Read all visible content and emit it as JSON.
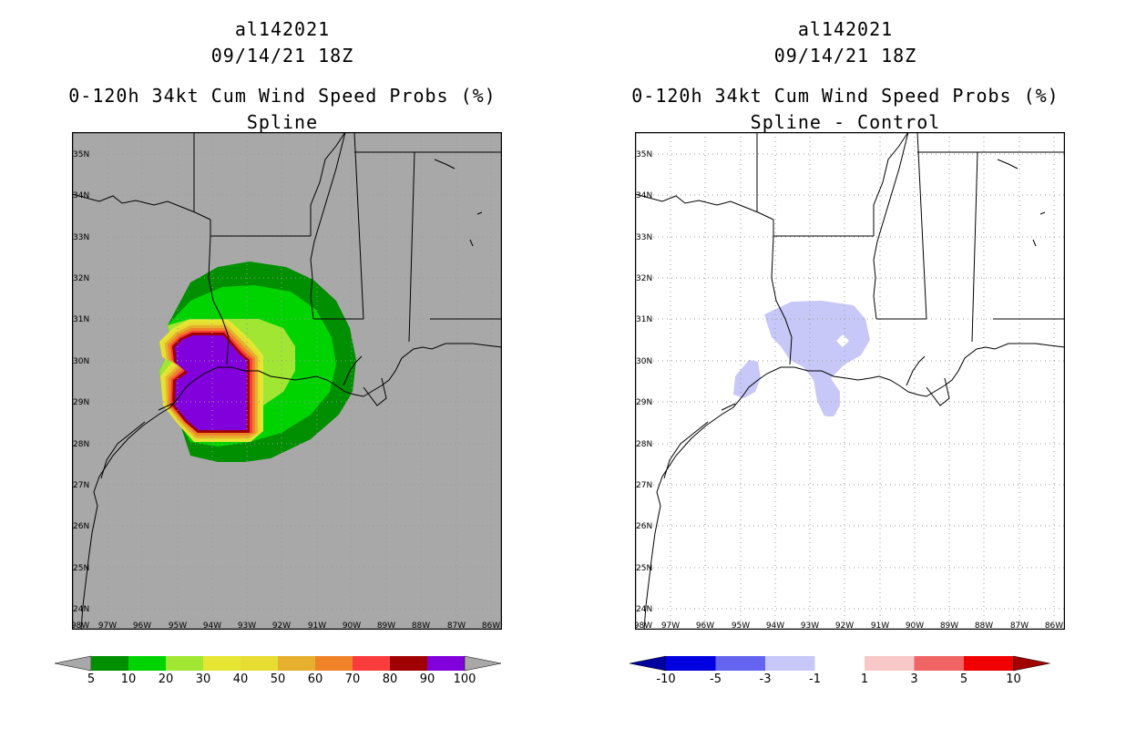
{
  "left_panel": {
    "title_line1": "al142021",
    "title_line2": "09/14/21 18Z",
    "title_line3": "0-120h 34kt Cum Wind Speed Probs (%)",
    "title_line4": "Spline",
    "background_color": "#a8a8a8",
    "colorbar": {
      "labels": [
        "5",
        "10",
        "20",
        "30",
        "40",
        "50",
        "60",
        "70",
        "80",
        "90",
        "100"
      ],
      "colors": [
        "#008f00",
        "#00d400",
        "#a0e632",
        "#e6e632",
        "#e6dc32",
        "#e6af2d",
        "#f08228",
        "#fa3c3c",
        "#a00000",
        "#8200dc"
      ],
      "arrow_left_color": "#a8a8a8",
      "arrow_right_color": "#a8a8a8"
    }
  },
  "right_panel": {
    "title_line1": "al142021",
    "title_line2": "09/14/21 18Z",
    "title_line3": "0-120h 34kt Cum Wind Speed Probs (%)",
    "title_line4": "Spline - Control",
    "background_color": "#ffffff",
    "colorbar": {
      "labels": [
        "-10",
        "-5",
        "-3",
        "-1",
        "1",
        "3",
        "5",
        "10"
      ],
      "colors": [
        "#0000e0",
        "#6464f0",
        "#c8c8f8",
        "#ffffff",
        "#f8c8c8",
        "#f06464",
        "#f00000"
      ],
      "arrow_left_color": "#0000a0",
      "arrow_right_color": "#a00000"
    }
  },
  "map": {
    "lon_labels": [
      "98W",
      "97W",
      "96W",
      "95W",
      "94W",
      "93W",
      "92W",
      "91W",
      "90W",
      "89W",
      "88W",
      "87W",
      "86W"
    ],
    "lat_labels": [
      "35N",
      "34N",
      "33N",
      "32N",
      "31N",
      "30N",
      "29N",
      "28N",
      "27N",
      "26N",
      "25N",
      "24N"
    ]
  }
}
